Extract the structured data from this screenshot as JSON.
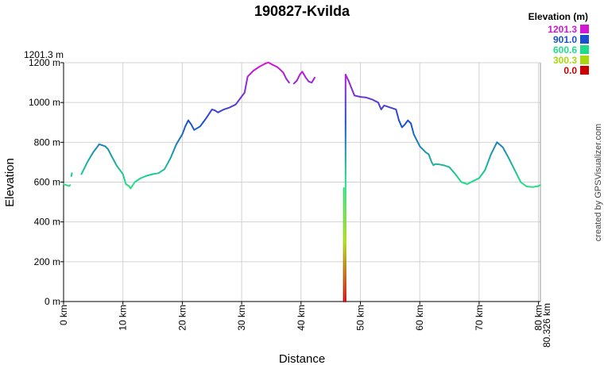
{
  "chart_data": {
    "type": "line",
    "title": "190827-Kvilda",
    "xlabel": "Distance",
    "ylabel": "Elevation",
    "credit": "created by GPSVisualizer.com",
    "max_label": "1201.3 m",
    "end_label": "80.326 km",
    "xlim": [
      0,
      80.326
    ],
    "ylim": [
      0,
      1200
    ],
    "grid": true,
    "x_ticks": [
      {
        "v": 0,
        "label": "0 km"
      },
      {
        "v": 10,
        "label": "10 km"
      },
      {
        "v": 20,
        "label": "20 km"
      },
      {
        "v": 30,
        "label": "30 km"
      },
      {
        "v": 40,
        "label": "40 km"
      },
      {
        "v": 50,
        "label": "50 km"
      },
      {
        "v": 60,
        "label": "60 km"
      },
      {
        "v": 70,
        "label": "70 km"
      },
      {
        "v": 80,
        "label": "80 km"
      }
    ],
    "y_ticks": [
      {
        "v": 0,
        "label": "0 m"
      },
      {
        "v": 200,
        "label": "200 m"
      },
      {
        "v": 400,
        "label": "400 m"
      },
      {
        "v": 600,
        "label": "600 m"
      },
      {
        "v": 800,
        "label": "800 m"
      },
      {
        "v": 1000,
        "label": "1000 m"
      },
      {
        "v": 1200,
        "label": "1200 m"
      }
    ],
    "legend": {
      "title": "Elevation (m)",
      "placement": "top-right",
      "entries": [
        {
          "label": "1201.3",
          "color": "#d515d5"
        },
        {
          "label": "901.0",
          "color": "#1a4fd0"
        },
        {
          "label": "600.6",
          "color": "#20dc8a"
        },
        {
          "label": "300.3",
          "color": "#a8d80e"
        },
        {
          "label": "0.0",
          "color": "#cc0000"
        }
      ]
    },
    "series": [
      {
        "x": [
          0,
          0.9,
          1.1
        ],
        "y": [
          590,
          580,
          585
        ]
      },
      {
        "x": [
          1.3,
          1.4
        ],
        "y": [
          630,
          645
        ]
      },
      {
        "x": [
          3,
          4,
          5,
          5.5,
          6,
          7,
          7.5,
          8,
          9,
          9.5,
          10,
          10.5,
          11,
          11.3,
          12,
          13,
          14,
          15,
          16,
          17,
          18,
          19,
          20,
          20.5,
          21,
          21.5,
          22,
          23,
          24,
          25,
          25.5,
          26,
          27,
          28,
          29,
          30,
          30.5,
          31,
          32,
          33,
          34,
          34.5,
          35,
          36,
          36.5,
          37,
          37.5,
          38
        ],
        "y": [
          640,
          700,
          750,
          770,
          790,
          780,
          765,
          735,
          680,
          660,
          640,
          590,
          580,
          568,
          600,
          620,
          632,
          640,
          645,
          665,
          720,
          790,
          840,
          880,
          910,
          890,
          862,
          880,
          920,
          965,
          960,
          950,
          965,
          975,
          990,
          1030,
          1050,
          1130,
          1160,
          1180,
          1196,
          1201,
          1193,
          1178,
          1165,
          1150,
          1120,
          1100
        ]
      },
      {
        "x": [
          38.8,
          39.3,
          39.8,
          40.2,
          40.8,
          41.3,
          41.8,
          42.3
        ],
        "y": [
          1095,
          1110,
          1140,
          1155,
          1125,
          1105,
          1100,
          1125
        ]
      },
      {
        "x": [
          47.2,
          47.2
        ],
        "y": [
          0,
          570
        ]
      },
      {
        "x": [
          47.5,
          47.5
        ],
        "y": [
          0,
          1140
        ]
      },
      {
        "x": [
          47.5,
          48,
          49,
          50,
          51,
          52,
          53,
          53.5,
          54,
          55,
          56,
          56.5,
          57,
          57.5,
          58,
          58.5,
          59,
          60,
          61,
          61.5,
          62,
          62.3,
          62.6,
          63,
          64,
          65,
          66,
          67,
          68,
          69,
          70,
          71,
          72,
          73,
          74,
          75,
          76,
          77,
          78,
          79,
          80,
          80.3
        ],
        "y": [
          1140,
          1110,
          1035,
          1028,
          1025,
          1015,
          1000,
          965,
          985,
          975,
          965,
          910,
          875,
          890,
          910,
          895,
          840,
          780,
          750,
          740,
          700,
          685,
          690,
          690,
          685,
          675,
          640,
          600,
          590,
          605,
          620,
          660,
          740,
          800,
          775,
          720,
          660,
          600,
          578,
          575,
          580,
          585
        ]
      }
    ]
  }
}
